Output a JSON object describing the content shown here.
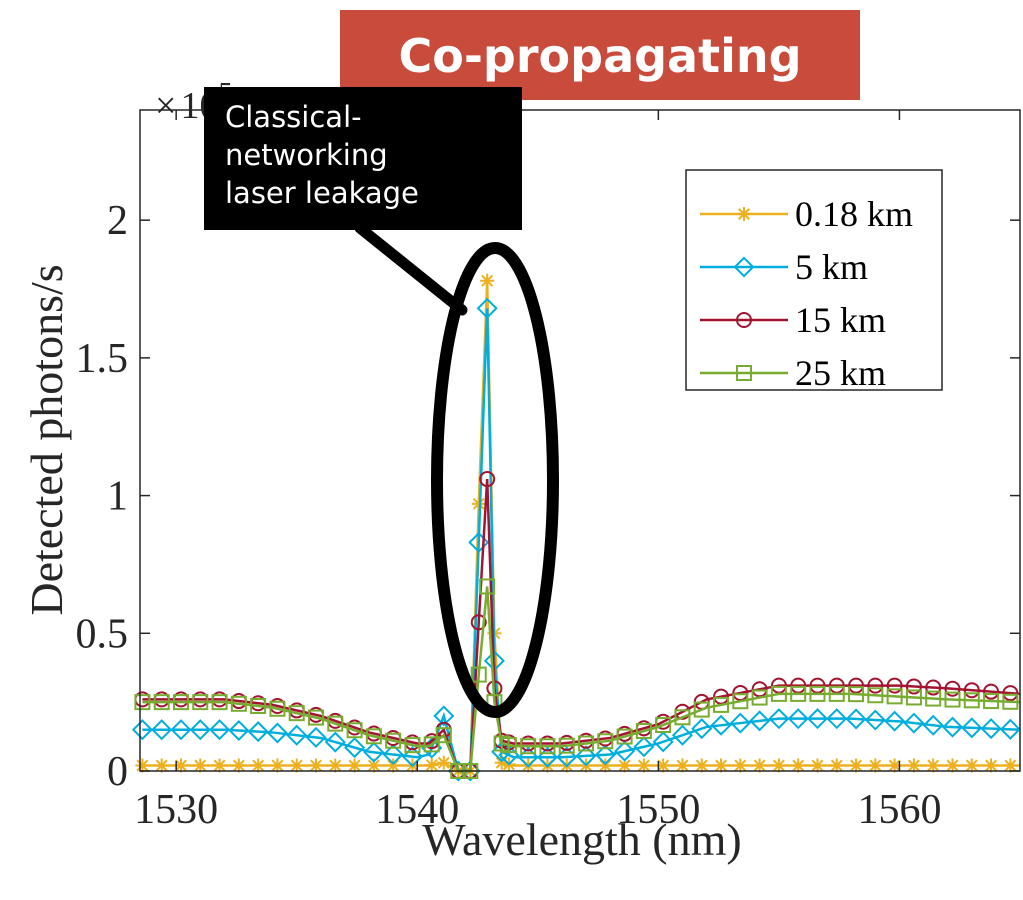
{
  "banner": {
    "text": "Co-propagating",
    "color": "#c84b3c"
  },
  "callout": {
    "lines": [
      "Classical-",
      "networking",
      "laser leakage"
    ]
  },
  "chart_data": {
    "type": "line",
    "xlabel": "Wavelength (nm)",
    "ylabel": "Detected photons/s",
    "y_exponent_label": "× 10^5",
    "xlim": [
      1528.5,
      1565
    ],
    "ylim": [
      0,
      2.4
    ],
    "xticks": [
      1530,
      1540,
      1550,
      1560
    ],
    "xtick_labels": [
      "1530",
      "1540",
      "1550",
      "1560"
    ],
    "yticks": [
      0,
      0.5,
      1,
      1.5,
      2
    ],
    "ytick_labels": [
      "0",
      "0.5",
      "1",
      "1.5",
      "2"
    ],
    "grid": false,
    "legend_position": "top-right",
    "series": [
      {
        "name": "0.18 km",
        "color": "#EDB120",
        "marker": "star",
        "x": [
          1528.6,
          1530,
          1532,
          1534,
          1536,
          1538,
          1540,
          1540.5,
          1541.1,
          1541.7,
          1542.2,
          1542.55,
          1542.9,
          1543.2,
          1543.5,
          1544,
          1546,
          1550,
          1555,
          1560,
          1565
        ],
        "y": [
          0.02,
          0.02,
          0.02,
          0.02,
          0.02,
          0.02,
          0.02,
          0.02,
          0.03,
          0.0,
          0.0,
          0.97,
          1.78,
          0.5,
          0.03,
          0.02,
          0.02,
          0.02,
          0.02,
          0.02,
          0.02
        ]
      },
      {
        "name": "5 km",
        "color": "#00AEDD",
        "marker": "diamond",
        "x": [
          1528.6,
          1530,
          1532,
          1534,
          1536,
          1538,
          1540,
          1540.5,
          1541.1,
          1541.7,
          1542.2,
          1542.55,
          1542.9,
          1543.2,
          1543.5,
          1544,
          1546,
          1548,
          1550,
          1552,
          1555,
          1558,
          1560,
          1562,
          1565
        ],
        "y": [
          0.15,
          0.15,
          0.15,
          0.14,
          0.12,
          0.07,
          0.05,
          0.06,
          0.2,
          0.0,
          0.0,
          0.83,
          1.68,
          0.4,
          0.07,
          0.05,
          0.05,
          0.06,
          0.1,
          0.16,
          0.19,
          0.19,
          0.18,
          0.16,
          0.15
        ]
      },
      {
        "name": "15 km",
        "color": "#A2142F",
        "marker": "circle",
        "x": [
          1528.6,
          1530,
          1532,
          1534,
          1536,
          1538,
          1540,
          1540.5,
          1541.1,
          1541.7,
          1542.2,
          1542.55,
          1542.9,
          1543.2,
          1543.5,
          1544,
          1546,
          1548,
          1550,
          1552,
          1555,
          1558,
          1560,
          1562,
          1565
        ],
        "y": [
          0.26,
          0.26,
          0.26,
          0.24,
          0.2,
          0.14,
          0.1,
          0.1,
          0.15,
          0.0,
          0.0,
          0.54,
          1.06,
          0.3,
          0.11,
          0.1,
          0.1,
          0.12,
          0.17,
          0.26,
          0.31,
          0.31,
          0.31,
          0.3,
          0.28
        ]
      },
      {
        "name": "25 km",
        "color": "#77AC30",
        "marker": "square",
        "x": [
          1528.6,
          1530,
          1532,
          1534,
          1536,
          1538,
          1540,
          1540.5,
          1541.1,
          1541.7,
          1542.2,
          1542.55,
          1542.9,
          1543.2,
          1543.5,
          1544,
          1546,
          1548,
          1550,
          1552,
          1555,
          1558,
          1560,
          1562,
          1565
        ],
        "y": [
          0.25,
          0.25,
          0.25,
          0.23,
          0.19,
          0.13,
          0.09,
          0.09,
          0.13,
          0.0,
          0.0,
          0.35,
          0.67,
          0.25,
          0.1,
          0.09,
          0.09,
          0.11,
          0.16,
          0.23,
          0.28,
          0.28,
          0.27,
          0.26,
          0.25
        ]
      }
    ]
  }
}
